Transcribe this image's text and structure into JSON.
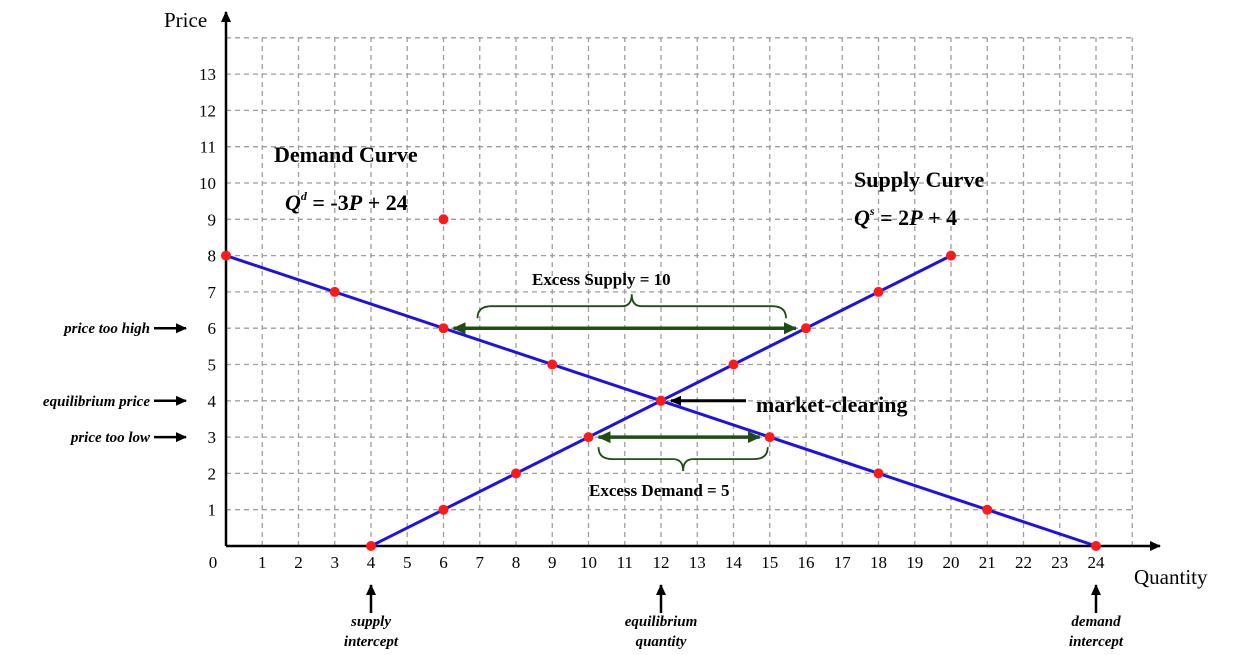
{
  "colors": {
    "demand_line": "#1a12e6",
    "supply_line": "#1a12e6",
    "points": "#ff1a1a",
    "gap_arrows": "#1f4d12",
    "grid": "#9e9e9e",
    "axis": "#000000"
  },
  "chart_data": {
    "type": "line",
    "xlabel": "Quantity",
    "ylabel": "Price",
    "xlim": [
      0,
      25
    ],
    "ylim": [
      0,
      14
    ],
    "x_ticks": [
      "0",
      "1",
      "2",
      "3",
      "4",
      "5",
      "6",
      "7",
      "8",
      "9",
      "10",
      "11",
      "12",
      "13",
      "14",
      "15",
      "16",
      "17",
      "18",
      "19",
      "20",
      "21",
      "22",
      "23",
      "24"
    ],
    "y_ticks": [
      "1",
      "2",
      "3",
      "4",
      "5",
      "6",
      "7",
      "8",
      "9",
      "10",
      "11",
      "12",
      "13"
    ],
    "grid": true,
    "series": [
      {
        "name": "Demand Curve",
        "equation": {
          "q": "Q",
          "sup": "d",
          "rest1": " = -3",
          "p": "P",
          "rest2": " + 24"
        },
        "x": [
          0,
          3,
          6,
          9,
          12,
          15,
          18,
          21,
          24
        ],
        "y": [
          8,
          7,
          6,
          5,
          4,
          3,
          2,
          1,
          0
        ]
      },
      {
        "name": "Supply Curve",
        "equation": {
          "q": "Q",
          "sup": "s",
          "rest1": " = 2",
          "p": "P",
          "rest2": " + 4"
        },
        "x": [
          4,
          6,
          8,
          10,
          12,
          14,
          16,
          18,
          20
        ],
        "y": [
          0,
          1,
          2,
          3,
          4,
          5,
          6,
          7,
          8
        ]
      }
    ],
    "stray_points": [
      {
        "x": 6,
        "y": 9
      }
    ],
    "gaps": [
      {
        "label": "Excess Supply = 10",
        "price": 6,
        "x_from": 6,
        "x_to": 16,
        "brace": "above"
      },
      {
        "label": "Excess Demand = 5",
        "price": 3,
        "x_from": 10,
        "x_to": 15,
        "brace": "below"
      }
    ],
    "price_notes": [
      {
        "label": "price too high",
        "y": 6
      },
      {
        "label": "equilibrium price",
        "y": 4
      },
      {
        "label": "price too low",
        "y": 3
      }
    ],
    "quantity_notes": [
      {
        "line1": "supply",
        "line2": "intercept",
        "x": 4
      },
      {
        "line1": "equilibrium",
        "line2": "quantity",
        "x": 12
      },
      {
        "line1": "demand",
        "line2": "intercept",
        "x": 24
      }
    ],
    "equilibrium": {
      "x": 12,
      "y": 4,
      "label": "market-clearing"
    }
  }
}
